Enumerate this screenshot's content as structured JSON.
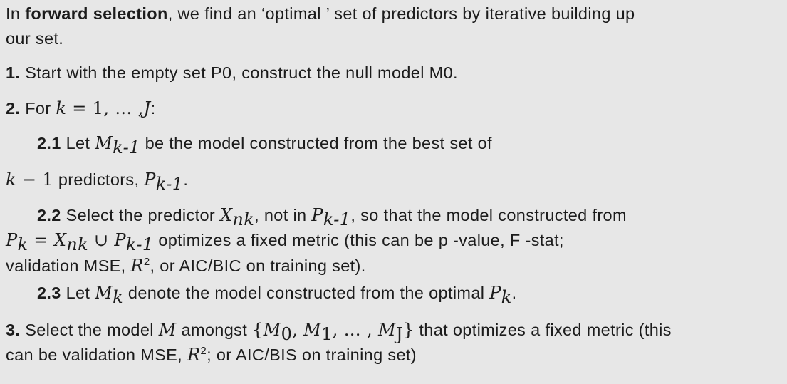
{
  "intro": {
    "prefix": "In ",
    "term": "forward selection",
    "text": ", we find an ‘optimal ’ set of predictors by iterative building up",
    "cont": "our set."
  },
  "step1": {
    "num": "1.",
    "text": " Start with the empty set P0, construct the null model M0."
  },
  "step2": {
    "num": "2.",
    "text": " For ",
    "k": "k",
    "eq": " = 1, … ,",
    "J": "J",
    "colon": ":"
  },
  "step21": {
    "num": "2.1",
    "text_a": " Let ",
    "M": "M",
    "sub": "k-1",
    "text_b": " be the model constructed from the best set of",
    "line2_k": "k",
    "line2_minus": " − 1",
    "line2_text": "  predictors, ",
    "P": "P",
    "Psub": "k-1",
    "end": "."
  },
  "step22": {
    "num": "2.2",
    "text_a": " Select the predictor ",
    "X": "X",
    "Xsub": "nk",
    "text_b": ", not in ",
    "P": "P",
    "Psub": "k-1",
    "text_c": ", so that the model constructed from",
    "l2_P": "P",
    "l2_Psub": "k",
    "l2_eq": " = ",
    "l2_X": "X",
    "l2_Xsub": "nk",
    "l2_union": " ∪ ",
    "l2_P2": "P",
    "l2_P2sub": "k-1",
    "l2_text": " optimizes a fixed metric (this can be p -value, F -stat;",
    "l3_text": "validation  MSE, ",
    "l3_R": "R",
    "l3_sup": "2",
    "l3_end": ", or AIC/BIC on training set)."
  },
  "step23": {
    "num": "2.3",
    "text_a": " Let ",
    "M": "M",
    "Msub": "k",
    "text_b": " denote the model constructed from the optimal ",
    "P": "P",
    "Psub": "k",
    "end": "."
  },
  "step3": {
    "num": "3.",
    "text_a": " Select the model ",
    "M": "M",
    "text_b": " amongst ",
    "set_open": "{",
    "M0": "M",
    "M0sub": "0",
    "comma1": ", ",
    "M1": "M",
    "M1sub": "1",
    "dots": ", … , ",
    "MJ": "M",
    "MJsub": "J",
    "set_close": "}",
    "text_c": "  that optimizes a fixed metric (this",
    "l2_text": "can be validation MSE, ",
    "l2_R": "R",
    "l2_sup": "2",
    "l2_end": "; or AIC/BIS on training set)"
  }
}
